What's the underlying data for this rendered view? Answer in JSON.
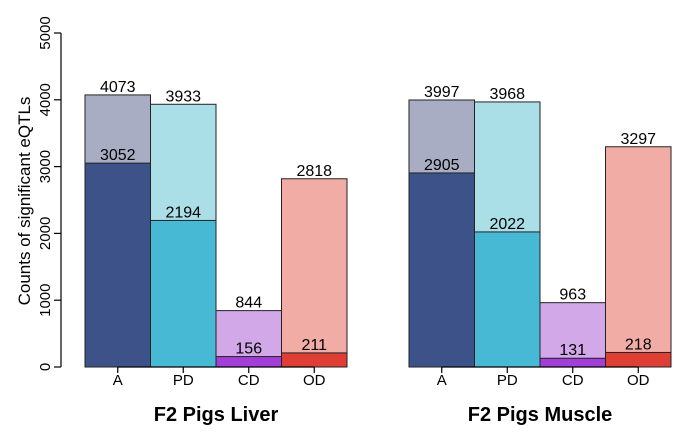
{
  "chart_data": {
    "type": "bar",
    "ylabel": "Counts of significant eQTLs",
    "ylim": [
      0,
      5000
    ],
    "yticks": [
      0,
      1000,
      2000,
      3000,
      4000,
      5000
    ],
    "categories": [
      "A",
      "PD",
      "CD",
      "OD"
    ],
    "panels": [
      {
        "title": "F2 Pigs Liver",
        "total": [
          4073,
          3933,
          844,
          2818
        ],
        "inner": [
          3052,
          2194,
          156,
          211
        ]
      },
      {
        "title": "F2 Pigs Muscle",
        "total": [
          3997,
          3968,
          963,
          3297
        ],
        "inner": [
          2905,
          2022,
          131,
          218
        ]
      }
    ],
    "colors": {
      "total": [
        "#a8adc4",
        "#aadfe8",
        "#d2a8e8",
        "#f2aca6"
      ],
      "inner": [
        "#3c5289",
        "#48b9d5",
        "#a33ed8",
        "#df3e35"
      ]
    }
  }
}
